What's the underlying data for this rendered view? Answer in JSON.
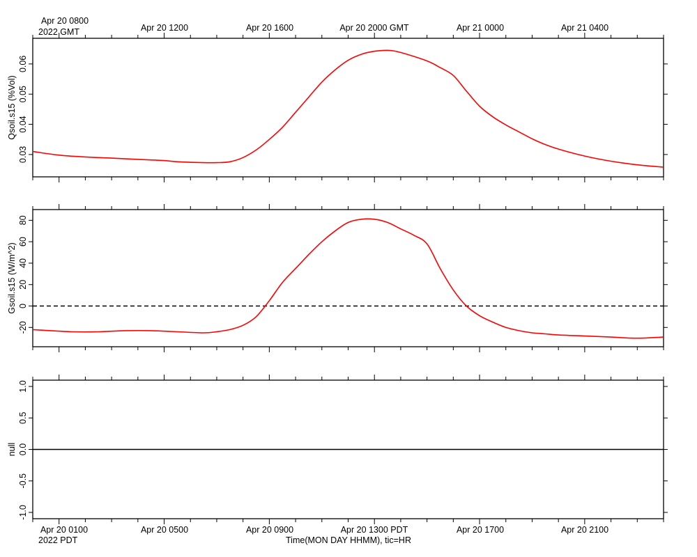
{
  "top_axis": {
    "tick_labels": [
      "Apr 20 0800",
      "Apr 20 1200",
      "Apr 20 1600",
      "Apr 20 2000 GMT",
      "Apr 21 0000",
      "Apr 21 0400"
    ],
    "year_label": "2022 GMT"
  },
  "bottom_axis": {
    "tick_labels": [
      "Apr 20 0100",
      "Apr 20 0500",
      "Apr 20 0900",
      "Apr 20 1300 PDT",
      "Apr 20 1700",
      "Apr 20 2100"
    ],
    "year_label": "2022 PDT",
    "title": "Time(MON DAY HHMM), tic=HR"
  },
  "colors": {
    "series": "#ff0000",
    "axis": "#000000"
  },
  "chart_data": [
    {
      "type": "line",
      "ylabel": "Qsoil.s15 (%Vol)",
      "ylim": [
        0.0226,
        0.0685
      ],
      "yticks": [
        0.03,
        0.04,
        0.05,
        0.06
      ],
      "ytick_labels": [
        "0.03",
        "0.04",
        "0.05",
        "0.06"
      ],
      "x_unit": "hours since Apr 20 0000 PDT",
      "xlim": [
        0.0,
        24.0
      ],
      "series": [
        {
          "x": [
            0.0,
            1.0,
            2.0,
            3.0,
            4.0,
            5.0,
            5.5,
            6.5,
            7.0,
            7.5,
            8.0,
            8.5,
            9.0,
            9.5,
            10.0,
            10.5,
            11.0,
            11.5,
            12.0,
            12.5,
            13.0,
            13.5,
            14.0,
            15.0,
            15.5,
            16.0,
            16.5,
            17.0,
            17.5,
            18.0,
            18.5,
            19.0,
            19.5,
            20.0,
            21.0,
            22.0,
            23.0,
            24.0
          ],
          "y": [
            0.031,
            0.0298,
            0.0292,
            0.0288,
            0.0284,
            0.028,
            0.0276,
            0.0273,
            0.0273,
            0.0276,
            0.029,
            0.0315,
            0.035,
            0.039,
            0.044,
            0.049,
            0.054,
            0.058,
            0.0612,
            0.0632,
            0.0642,
            0.0645,
            0.0638,
            0.061,
            0.0588,
            0.0562,
            0.051,
            0.046,
            0.0425,
            0.0398,
            0.0375,
            0.0352,
            0.0333,
            0.0318,
            0.0295,
            0.0278,
            0.0266,
            0.0258
          ]
        }
      ]
    },
    {
      "type": "line",
      "ylabel": "Gsoil.s15 (W/m^2)",
      "ylim": [
        -38,
        90
      ],
      "yticks": [
        -20,
        0,
        20,
        40,
        60,
        80
      ],
      "ytick_labels": [
        "-20",
        "0",
        "20",
        "40",
        "60",
        "80"
      ],
      "zero_line": "dashed",
      "x_unit": "hours since Apr 20 0000 PDT",
      "xlim": [
        0.0,
        24.0
      ],
      "series": [
        {
          "x": [
            0.0,
            1.5,
            2.5,
            3.5,
            4.5,
            5.5,
            6.5,
            7.0,
            7.5,
            8.0,
            8.5,
            9.0,
            9.5,
            10.0,
            10.5,
            11.0,
            11.5,
            12.0,
            12.5,
            13.0,
            13.5,
            14.0,
            14.5,
            15.0,
            15.5,
            16.0,
            16.5,
            17.0,
            17.5,
            18.0,
            18.5,
            19.0,
            19.5,
            20.0,
            21.0,
            22.0,
            23.0,
            24.0
          ],
          "y": [
            -22,
            -24,
            -24,
            -23,
            -23,
            -24,
            -25,
            -24,
            -22,
            -18,
            -10,
            5,
            22,
            35,
            48,
            60,
            70,
            78,
            81,
            81,
            78,
            72,
            66,
            58,
            35,
            15,
            0,
            -9,
            -15,
            -20,
            -23,
            -25,
            -26,
            -27,
            -28,
            -29,
            -30,
            -29
          ]
        }
      ]
    },
    {
      "type": "line",
      "ylabel": "null",
      "ylim": [
        -1.1,
        1.1
      ],
      "yticks": [
        -1.0,
        -0.5,
        0.0,
        0.5,
        1.0
      ],
      "ytick_labels": [
        "-1.0",
        "-0.5",
        "0.0",
        "0.5",
        "1.0"
      ],
      "x_unit": "hours since Apr 20 0000 PDT",
      "xlim": [
        0.0,
        24.0
      ],
      "series": [
        {
          "x": [
            0.0,
            24.0
          ],
          "y": [
            0.0,
            0.0
          ]
        }
      ]
    }
  ]
}
